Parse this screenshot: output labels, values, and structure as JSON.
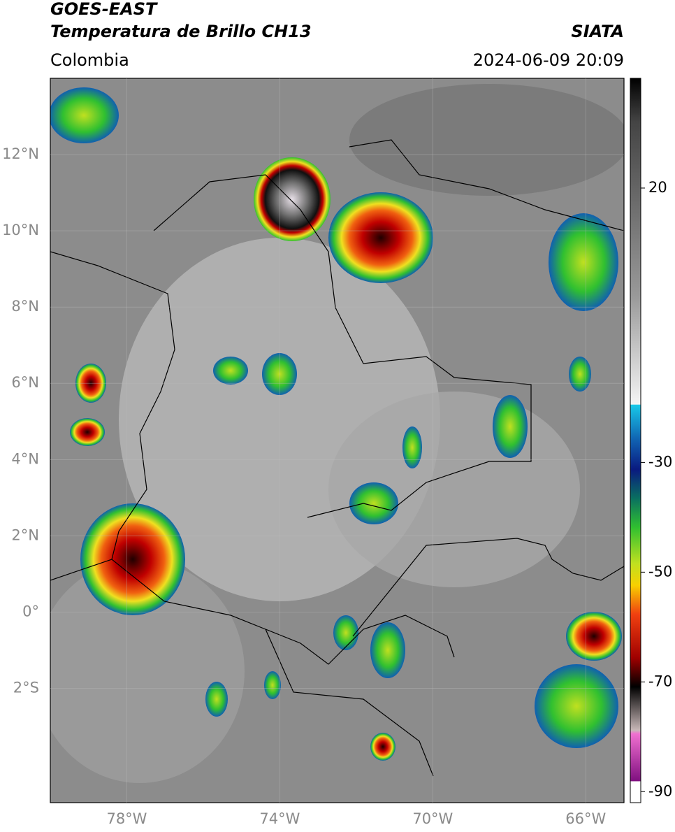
{
  "header": {
    "title": "GOES-EAST",
    "subtitle": "Temperatura de Brillo CH13",
    "source": "SIATA",
    "region": "Colombia",
    "datetime": "2024-06-09 20:09"
  },
  "map": {
    "xlim": [
      -80,
      -65
    ],
    "ylim": [
      -5,
      14
    ],
    "xticks": [
      {
        "value": -78,
        "label": "78°W"
      },
      {
        "value": -74,
        "label": "74°W"
      },
      {
        "value": -70,
        "label": "70°W"
      },
      {
        "value": -66,
        "label": "66°W"
      }
    ],
    "yticks": [
      {
        "value": 12,
        "label": "12°N"
      },
      {
        "value": 10,
        "label": "10°N"
      },
      {
        "value": 8,
        "label": "8°N"
      },
      {
        "value": 6,
        "label": "6°N"
      },
      {
        "value": 4,
        "label": "4°N"
      },
      {
        "value": 2,
        "label": "2°N"
      },
      {
        "value": 0,
        "label": "0°"
      },
      {
        "value": -2,
        "label": "2°S"
      }
    ]
  },
  "colorbar": {
    "lim": [
      -92,
      40
    ],
    "ticks": [
      20,
      -30,
      -50,
      -70,
      -90
    ]
  }
}
